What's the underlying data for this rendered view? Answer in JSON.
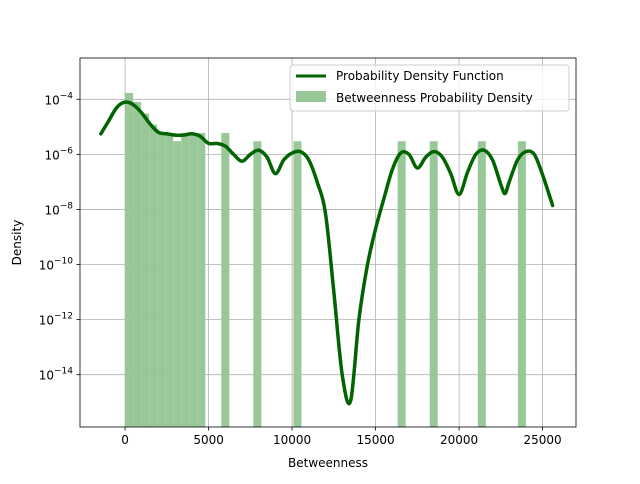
{
  "chart_data": {
    "type": "bar",
    "title": "",
    "xlabel": "Betweenness",
    "ylabel": "Density",
    "xlim": [
      -2700,
      27000
    ],
    "ylim_log10": [
      -15.9,
      -2.5
    ],
    "yscale": "log",
    "grid": true,
    "legend_position": "top-right",
    "x_ticks": [
      0,
      5000,
      10000,
      15000,
      20000,
      25000
    ],
    "x_tick_labels": [
      "0",
      "5000",
      "10000",
      "15000",
      "20000",
      "25000"
    ],
    "y_ticks_log10": [
      -14,
      -12,
      -10,
      -8,
      -6,
      -4
    ],
    "y_tick_labels": [
      {
        "base": "10",
        "exp": "−14"
      },
      {
        "base": "10",
        "exp": "−12"
      },
      {
        "base": "10",
        "exp": "−10"
      },
      {
        "base": "10",
        "exp": "−8"
      },
      {
        "base": "10",
        "exp": "−6"
      },
      {
        "base": "10",
        "exp": "−4"
      }
    ],
    "series": [
      {
        "name": "Betweenness Probability Density",
        "kind": "histogram",
        "color": "#98c898",
        "bin_width": 480,
        "bins": [
          {
            "x0": 0,
            "density": 0.00017
          },
          {
            "x0": 480,
            "density": 8e-05
          },
          {
            "x0": 960,
            "density": 3e-05
          },
          {
            "x0": 1440,
            "density": 1.2e-05
          },
          {
            "x0": 1920,
            "density": 6e-06
          },
          {
            "x0": 2400,
            "density": 6e-06
          },
          {
            "x0": 2880,
            "density": 3e-06
          },
          {
            "x0": 3360,
            "density": 6e-06
          },
          {
            "x0": 3840,
            "density": 6e-06
          },
          {
            "x0": 4320,
            "density": 6e-06
          },
          {
            "x0": 5760,
            "density": 6e-06
          },
          {
            "x0": 7680,
            "density": 3e-06
          },
          {
            "x0": 10080,
            "density": 3e-06
          },
          {
            "x0": 16320,
            "density": 3e-06
          },
          {
            "x0": 18240,
            "density": 3e-06
          },
          {
            "x0": 21120,
            "density": 3e-06
          },
          {
            "x0": 23520,
            "density": 3e-06
          }
        ]
      },
      {
        "name": "Probability Density Function",
        "kind": "line",
        "color": "#006400",
        "points": [
          [
            -1450,
            5.6e-06
          ],
          [
            -1000,
            1.58e-05
          ],
          [
            -500,
            5.01e-05
          ],
          [
            0,
            7.9e-05
          ],
          [
            500,
            6.31e-05
          ],
          [
            1000,
            3.16e-05
          ],
          [
            1500,
            1.26e-05
          ],
          [
            2000,
            6.3e-06
          ],
          [
            2500,
            5.6e-06
          ],
          [
            3000,
            5e-06
          ],
          [
            3500,
            5e-06
          ],
          [
            4000,
            5.6e-06
          ],
          [
            4500,
            4.5e-06
          ],
          [
            5000,
            2.5e-06
          ],
          [
            5500,
            2.5e-06
          ],
          [
            6000,
            2e-06
          ],
          [
            6500,
            1e-06
          ],
          [
            7000,
            5.6e-07
          ],
          [
            7500,
            1e-06
          ],
          [
            8000,
            1.41e-06
          ],
          [
            8500,
            7.9e-07
          ],
          [
            9000,
            2e-07
          ],
          [
            9500,
            6.3e-07
          ],
          [
            10000,
            1.12e-06
          ],
          [
            10500,
            1.26e-06
          ],
          [
            11000,
            6.3e-07
          ],
          [
            11500,
            1e-07
          ],
          [
            12000,
            7.1e-09
          ],
          [
            12500,
            1e-11
          ],
          [
            13000,
            1e-14
          ],
          [
            13500,
            1.1e-15
          ],
          [
            14000,
            1e-12
          ],
          [
            14500,
            8.91e-11
          ],
          [
            15000,
            2e-09
          ],
          [
            15500,
            2.51e-08
          ],
          [
            16000,
            2.8e-07
          ],
          [
            16500,
            1.12e-06
          ],
          [
            17000,
            1e-06
          ],
          [
            17500,
            3.2e-07
          ],
          [
            18000,
            7.9e-07
          ],
          [
            18500,
            1.26e-06
          ],
          [
            19000,
            7.9e-07
          ],
          [
            19500,
            2e-07
          ],
          [
            20000,
            3.5e-08
          ],
          [
            20500,
            2.2e-07
          ],
          [
            21000,
            1e-06
          ],
          [
            21500,
            1.41e-06
          ],
          [
            22000,
            6.3e-07
          ],
          [
            22500,
            8e-08
          ],
          [
            22750,
            3.8e-08
          ],
          [
            23000,
            1e-07
          ],
          [
            23500,
            6.3e-07
          ],
          [
            24000,
            1.26e-06
          ],
          [
            24500,
            1e-06
          ],
          [
            25000,
            1.8e-07
          ],
          [
            25600,
            1.4e-08
          ]
        ]
      }
    ]
  }
}
